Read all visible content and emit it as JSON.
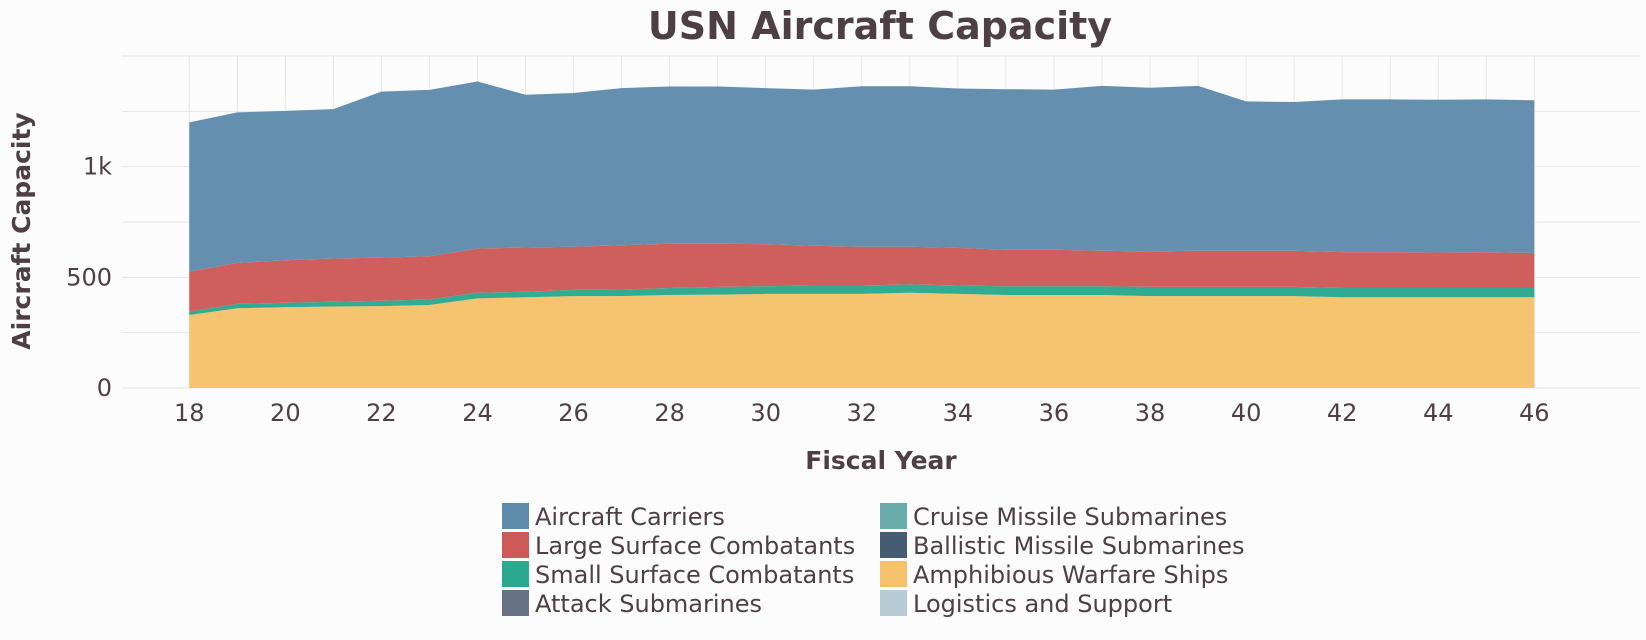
{
  "chart_data": {
    "type": "area",
    "stacked": true,
    "title": "USN  Aircraft Capacity",
    "xlabel": "Fiscal Year",
    "ylabel": "Aircraft Capacity",
    "x": [
      18,
      19,
      20,
      21,
      22,
      23,
      24,
      25,
      26,
      27,
      28,
      29,
      30,
      31,
      32,
      33,
      34,
      35,
      36,
      37,
      38,
      39,
      40,
      41,
      42,
      43,
      44,
      45,
      46
    ],
    "xticks": [
      18,
      20,
      22,
      24,
      26,
      28,
      30,
      32,
      34,
      36,
      38,
      40,
      42,
      44,
      46
    ],
    "xticklabels": [
      "18",
      "20",
      "22",
      "24",
      "26",
      "28",
      "30",
      "32",
      "34",
      "36",
      "38",
      "40",
      "42",
      "44",
      "46"
    ],
    "yticks": [
      0,
      500,
      1000
    ],
    "yticklabels": [
      "0",
      "500",
      "1k"
    ],
    "xlim": [
      16.6,
      48.2
    ],
    "ylim": [
      0,
      1500
    ],
    "grid": true,
    "legend_position": "bottom",
    "series": [
      {
        "name": "Amphibious Warfare Ships",
        "color": "#f5c26b",
        "values": [
          330,
          360,
          365,
          368,
          370,
          375,
          405,
          410,
          415,
          415,
          420,
          422,
          425,
          425,
          425,
          430,
          425,
          420,
          420,
          420,
          415,
          415,
          415,
          415,
          410,
          410,
          410,
          410,
          410
        ]
      },
      {
        "name": "Small Surface Combatants",
        "color": "#2aa98f",
        "values": [
          15,
          20,
          20,
          22,
          24,
          25,
          25,
          25,
          28,
          30,
          32,
          35,
          35,
          38,
          38,
          38,
          38,
          40,
          40,
          40,
          42,
          42,
          42,
          42,
          42,
          42,
          42,
          42,
          42
        ]
      },
      {
        "name": "Large Surface Combatants",
        "color": "#cd5a58",
        "values": [
          180,
          185,
          192,
          195,
          195,
          195,
          200,
          200,
          195,
          200,
          200,
          195,
          190,
          180,
          175,
          170,
          170,
          165,
          165,
          160,
          160,
          163,
          163,
          163,
          162,
          162,
          160,
          162,
          158
        ]
      },
      {
        "name": "Aircraft Carriers",
        "color": "#5f8bab",
        "values": [
          675,
          680,
          675,
          675,
          750,
          752,
          755,
          690,
          695,
          710,
          710,
          710,
          705,
          705,
          725,
          725,
          720,
          725,
          723,
          745,
          740,
          745,
          675,
          672,
          690,
          690,
          690,
          690,
          690
        ]
      }
    ],
    "legend": [
      {
        "name": "Aircraft Carriers",
        "color": "#5f8bab"
      },
      {
        "name": "Large Surface Combatants",
        "color": "#cd5a58"
      },
      {
        "name": "Small Surface Combatants",
        "color": "#2aa98f"
      },
      {
        "name": "Attack Submarines",
        "color": "#687385"
      },
      {
        "name": "Cruise Missile Submarines",
        "color": "#6aacac"
      },
      {
        "name": "Ballistic Missile Submarines",
        "color": "#455c72"
      },
      {
        "name": "Amphibious Warfare Ships",
        "color": "#f5c26b"
      },
      {
        "name": "Logistics and Support",
        "color": "#b8cad3"
      }
    ]
  }
}
